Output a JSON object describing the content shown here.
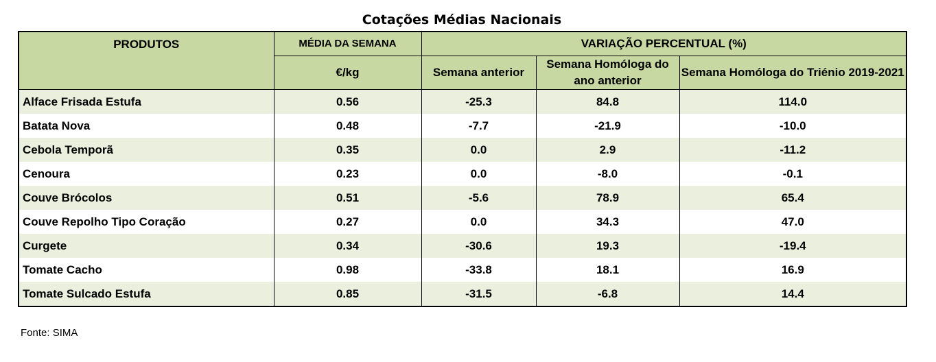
{
  "title": "Cotações Médias Nacionais",
  "header": {
    "produtos": "PRODUTOS",
    "media_semana": "MÉDIA DA SEMANA",
    "unit": "€/kg",
    "variacao": "VARIAÇÃO PERCENTUAL (%)",
    "semana_anterior": "Semana anterior",
    "semana_homologa": "Semana Homóloga do ano anterior",
    "semana_homologa_trienio": "Semana Homóloga do Triénio 2019-2021"
  },
  "rows": [
    {
      "produto": "Alface Frisada Estufa",
      "media": "0.56",
      "sem_ant": "-25.3",
      "hom": "84.8",
      "trienio": "114.0"
    },
    {
      "produto": "Batata Nova",
      "media": "0.48",
      "sem_ant": "-7.7",
      "hom": "-21.9",
      "trienio": "-10.0"
    },
    {
      "produto": "Cebola Temporã",
      "media": "0.35",
      "sem_ant": "0.0",
      "hom": "2.9",
      "trienio": "-11.2"
    },
    {
      "produto": "Cenoura",
      "media": "0.23",
      "sem_ant": "0.0",
      "hom": "-8.0",
      "trienio": "-0.1"
    },
    {
      "produto": "Couve Brócolos",
      "media": "0.51",
      "sem_ant": "-5.6",
      "hom": "78.9",
      "trienio": "65.4"
    },
    {
      "produto": "Couve Repolho Tipo Coração",
      "media": "0.27",
      "sem_ant": "0.0",
      "hom": "34.3",
      "trienio": "47.0"
    },
    {
      "produto": "Curgete",
      "media": "0.34",
      "sem_ant": "-30.6",
      "hom": "19.3",
      "trienio": "-19.4"
    },
    {
      "produto": "Tomate Cacho",
      "media": "0.98",
      "sem_ant": "-33.8",
      "hom": "18.1",
      "trienio": "16.9"
    },
    {
      "produto": "Tomate Sulcado Estufa",
      "media": "0.85",
      "sem_ant": "-31.5",
      "hom": "-6.8",
      "trienio": "14.4"
    }
  ],
  "source": "Fonte: SIMA",
  "colors": {
    "header_bg": "#c7d8a3",
    "band_bg": "#ebf0de"
  }
}
